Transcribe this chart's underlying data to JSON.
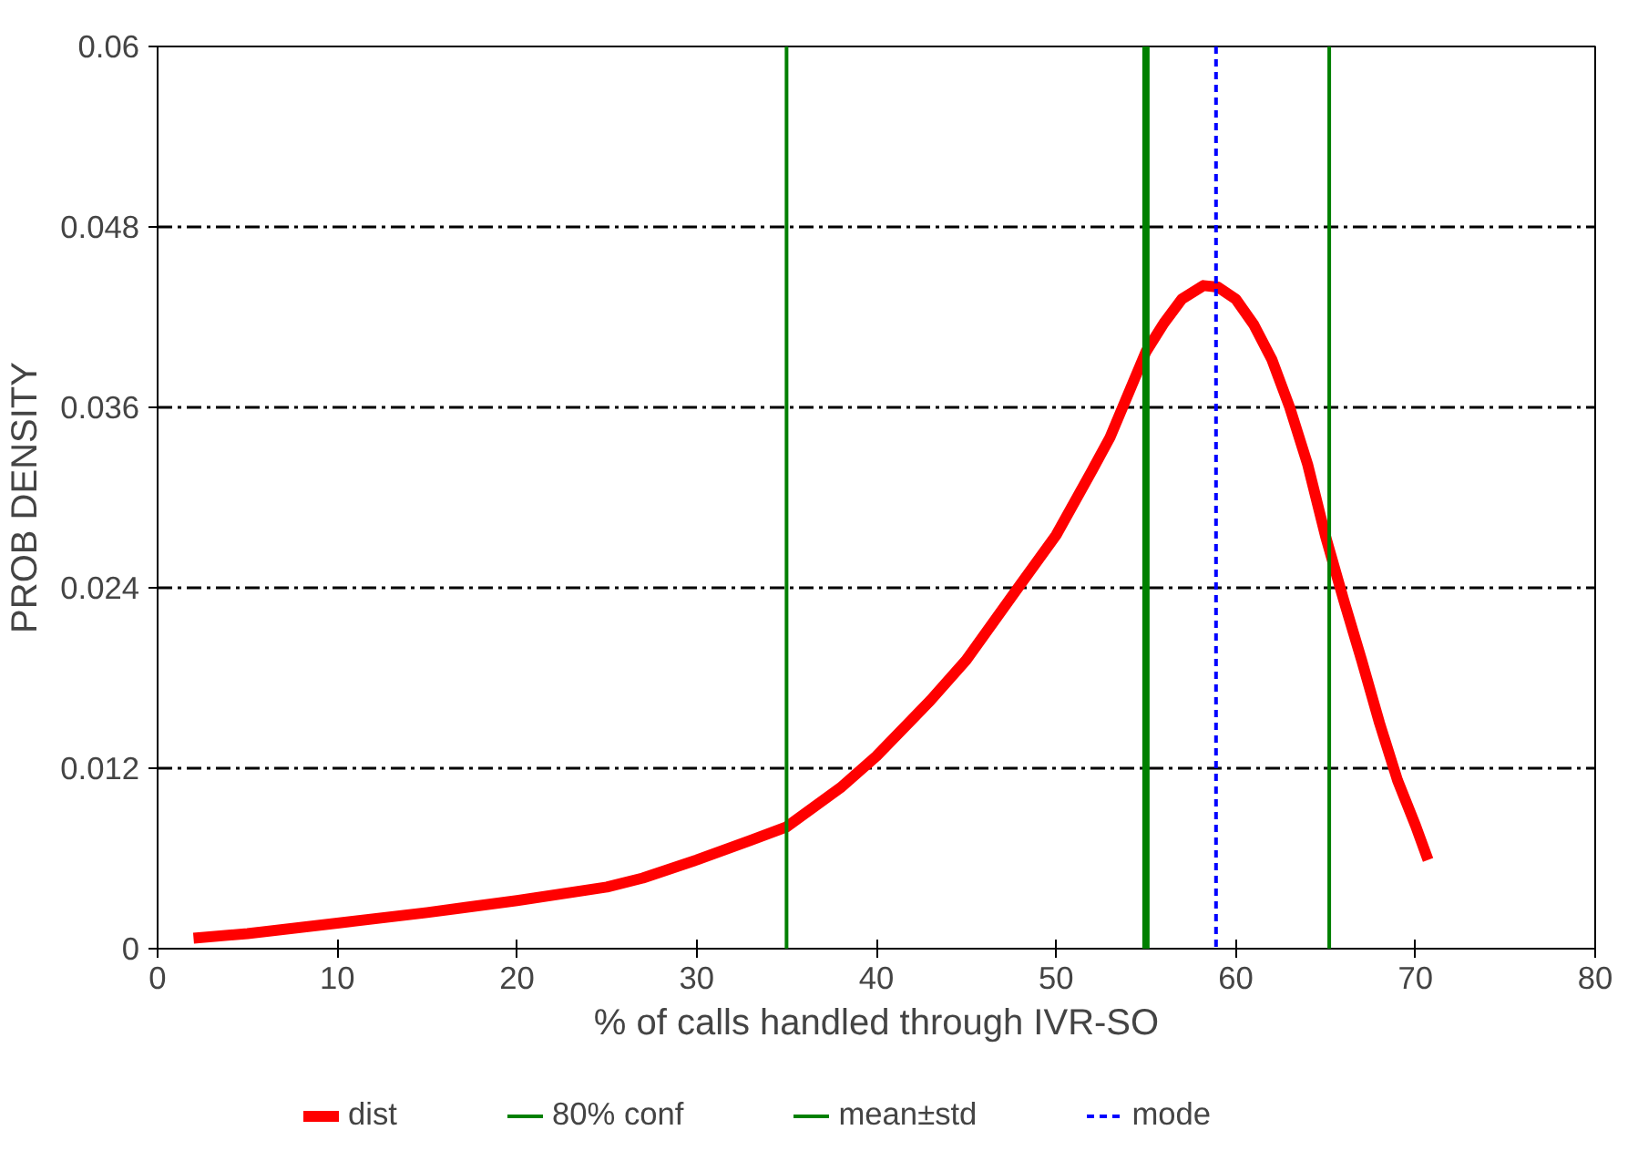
{
  "chart_data": {
    "type": "line",
    "xlabel": "% of calls handled through IVR-SO",
    "ylabel": "PROB DENSITY",
    "series": [
      {
        "name": "dist",
        "color": "#ff0000",
        "x": [
          2,
          5,
          10,
          15,
          20,
          25,
          27,
          30,
          33,
          35,
          38,
          40,
          43,
          45,
          48,
          50,
          52,
          53,
          55,
          56,
          57,
          58.2,
          59,
          60,
          61,
          62,
          63,
          64,
          65,
          66,
          67,
          68,
          69,
          70,
          70.7
        ],
        "values": [
          0.0007,
          0.001,
          0.0017,
          0.0024,
          0.0032,
          0.0041,
          0.0047,
          0.0059,
          0.0072,
          0.0081,
          0.0107,
          0.0128,
          0.0165,
          0.0192,
          0.0242,
          0.0275,
          0.0318,
          0.034,
          0.0397,
          0.0416,
          0.0432,
          0.0441,
          0.044,
          0.0432,
          0.0415,
          0.0392,
          0.036,
          0.0322,
          0.0274,
          0.0232,
          0.0192,
          0.015,
          0.0112,
          0.0082,
          0.0059
        ]
      }
    ],
    "ref_lines": [
      {
        "axis": "x",
        "value": 35,
        "label": "80% conf",
        "color": "#008000",
        "line_style": "solid"
      },
      {
        "axis": "x",
        "value": 65.2,
        "color": "#008000",
        "line_style": "solid"
      },
      {
        "axis": "x",
        "value": 55,
        "label": "mean±std",
        "color": "#008000",
        "line_style": "solid"
      },
      {
        "axis": "x",
        "value": 58.9,
        "label": "mode",
        "color": "#0000ff",
        "line_style": "dashed"
      }
    ],
    "xlim": [
      0,
      80
    ],
    "xticks": [
      0,
      10,
      20,
      30,
      40,
      50,
      60,
      70,
      80
    ],
    "ylim": [
      0,
      0.06
    ],
    "yticks": [
      0,
      0.012,
      0.024,
      0.036,
      0.048,
      0.06
    ],
    "grid": "y",
    "legend": "bottom",
    "line_style": "solid",
    "marker": "none"
  }
}
